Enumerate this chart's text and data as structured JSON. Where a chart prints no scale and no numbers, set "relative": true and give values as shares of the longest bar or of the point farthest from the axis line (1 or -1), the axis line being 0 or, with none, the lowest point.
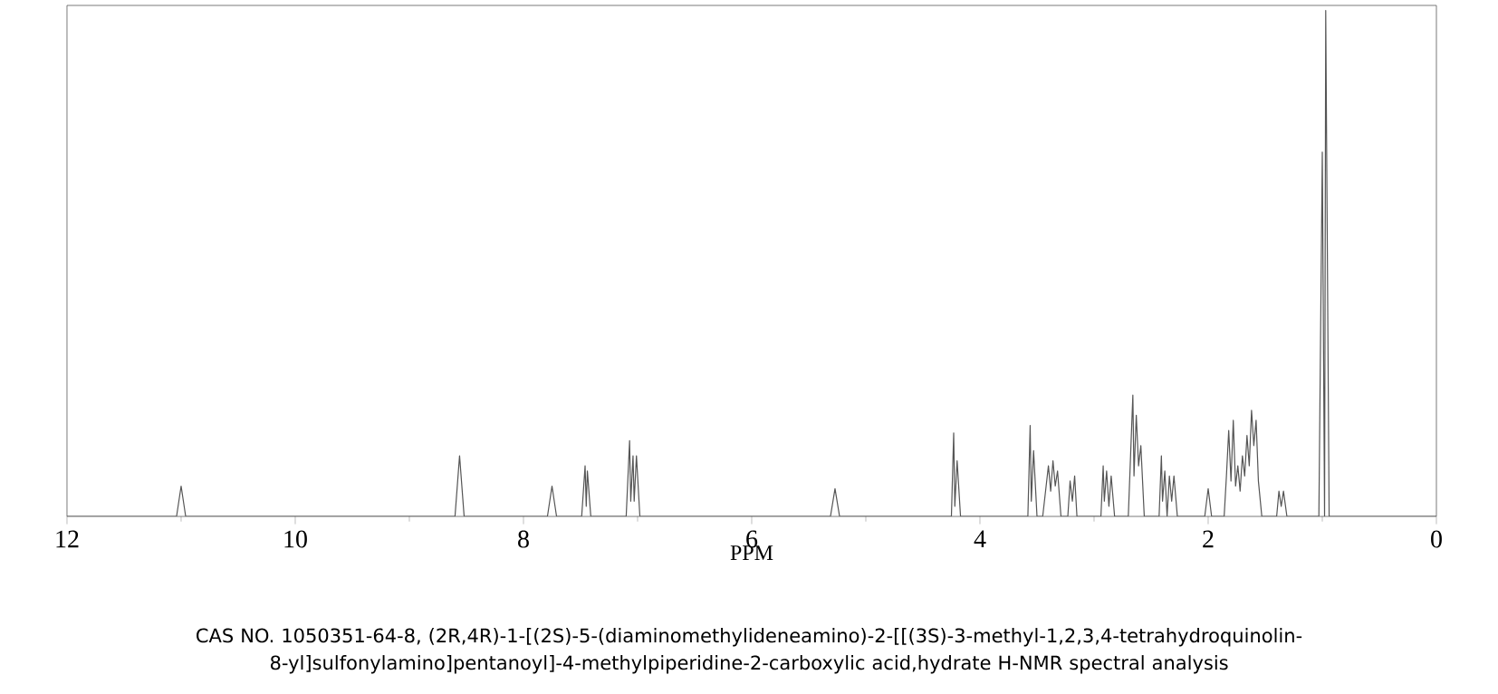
{
  "chart_data": {
    "type": "line",
    "relative": true,
    "xlabel": "PPM",
    "xlim": [
      12,
      0
    ],
    "xticks": [
      12,
      10,
      8,
      6,
      4,
      2,
      0
    ],
    "grid": false,
    "marker": "none",
    "line_style": "solid",
    "annotations": [
      "CAS NO. 1050351-64-8, (2R,4R)-1-[(2S)-5-(diaminomethylideneamino)-2-[[(3S)-3-methyl-1,2,3,4-tetrahydroquinolin-8-yl]sulfonylamino]pentanoyl]-4-methylpiperidine-2-carboxylic acid,hydrate H-NMR spectral analysis"
    ],
    "series": [
      {
        "color": "#555555",
        "x": [
          12,
          11.04,
          11.0,
          10.96,
          8.6,
          8.56,
          8.52,
          7.79,
          7.75,
          7.71,
          7.49,
          7.46,
          7.45,
          7.44,
          7.41,
          7.1,
          7.07,
          7.06,
          7.04,
          7.03,
          7.01,
          6.98,
          5.31,
          5.27,
          5.23,
          4.25,
          4.23,
          4.22,
          4.2,
          4.17,
          3.58,
          3.56,
          3.55,
          3.53,
          3.5,
          3.45,
          3.42,
          3.4,
          3.38,
          3.36,
          3.34,
          3.32,
          3.29,
          3.23,
          3.21,
          3.19,
          3.17,
          3.15,
          2.94,
          2.92,
          2.91,
          2.89,
          2.87,
          2.85,
          2.82,
          2.7,
          2.68,
          2.66,
          2.65,
          2.63,
          2.61,
          2.59,
          2.56,
          2.43,
          2.41,
          2.4,
          2.38,
          2.36,
          2.34,
          2.32,
          2.3,
          2.27,
          2.03,
          2.0,
          1.97,
          1.86,
          1.84,
          1.82,
          1.8,
          1.78,
          1.76,
          1.74,
          1.72,
          1.7,
          1.68,
          1.66,
          1.64,
          1.62,
          1.6,
          1.58,
          1.56,
          1.53,
          1.4,
          1.38,
          1.36,
          1.34,
          1.31,
          1.03,
          1.0,
          0.98,
          0.97,
          0.94,
          0
        ],
        "values": [
          0,
          0,
          0.06,
          0,
          0,
          0.12,
          0,
          0,
          0.06,
          0,
          0,
          0.1,
          0.02,
          0.09,
          0,
          0,
          0.15,
          0.03,
          0.12,
          0.03,
          0.12,
          0,
          0,
          0.055,
          0,
          0,
          0.165,
          0.02,
          0.11,
          0,
          0,
          0.18,
          0.03,
          0.13,
          0,
          0,
          0.06,
          0.1,
          0.05,
          0.11,
          0.06,
          0.09,
          0,
          0,
          0.07,
          0.03,
          0.08,
          0,
          0,
          0.1,
          0.03,
          0.09,
          0.02,
          0.08,
          0,
          0,
          0.12,
          0.24,
          0.08,
          0.2,
          0.1,
          0.14,
          0,
          0,
          0.12,
          0.03,
          0.09,
          0,
          0.08,
          0.03,
          0.08,
          0,
          0,
          0.055,
          0,
          0,
          0.08,
          0.17,
          0.07,
          0.19,
          0.06,
          0.1,
          0.05,
          0.12,
          0.08,
          0.16,
          0.1,
          0.21,
          0.14,
          0.19,
          0.07,
          0,
          0,
          0.05,
          0.02,
          0.05,
          0,
          0,
          0.72,
          0,
          1.0,
          0,
          0
        ]
      }
    ]
  }
}
